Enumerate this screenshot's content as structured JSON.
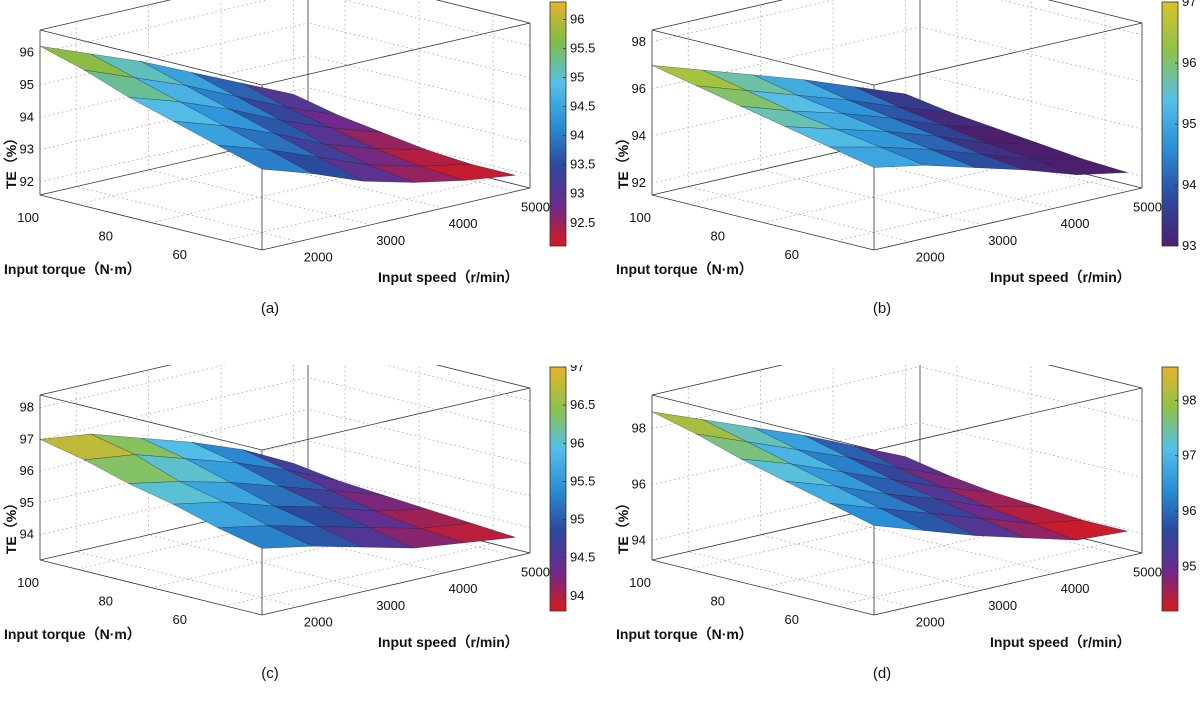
{
  "chart_data": [
    {
      "id": "a",
      "type": "surface",
      "caption": "(a)",
      "title": "",
      "xlabel": "Input speed（r/min）",
      "ylabel": "Input torque（N·m）",
      "zlabel": "TE（%）",
      "x_ticks": [
        "2000",
        "3000",
        "4000",
        "5000"
      ],
      "y_ticks": [
        "100",
        "80",
        "60"
      ],
      "z_ticks": [
        "96",
        "95",
        "94",
        "93",
        "92"
      ],
      "colorbar_ticks": [
        "96",
        "95.5",
        "95",
        "94.5",
        "94",
        "93.5",
        "93",
        "92.5"
      ],
      "xlim": [
        1500,
        5200
      ],
      "ylim": [
        50,
        110
      ],
      "zlim": [
        91.6,
        96.7
      ],
      "clim": [
        92.1,
        96.3
      ],
      "grid": true,
      "colormap": [
        "#d7191c",
        "#6b2a8c",
        "#2b4a9e",
        "#2a8fd6",
        "#55c0e8",
        "#7dbd4a",
        "#e8b32a"
      ],
      "surface": {
        "speed": [
          1500,
          2200,
          2900,
          3600,
          4300,
          5000
        ],
        "torque": [
          110,
          98,
          86,
          74,
          62,
          50
        ],
        "te": [
          [
            96.2,
            95.6,
            95.0,
            94.3,
            93.6,
            92.9
          ],
          [
            95.8,
            95.2,
            94.6,
            93.9,
            93.2,
            92.6
          ],
          [
            95.3,
            94.8,
            94.2,
            93.5,
            92.9,
            92.4
          ],
          [
            94.9,
            94.4,
            93.8,
            93.1,
            92.6,
            92.2
          ],
          [
            94.5,
            94.0,
            93.4,
            92.8,
            92.4,
            92.1
          ],
          [
            94.1,
            93.6,
            93.0,
            92.6,
            92.3,
            92.1
          ]
        ]
      }
    },
    {
      "id": "b",
      "type": "surface",
      "caption": "(b)",
      "title": "",
      "xlabel": "Input speed（r/min）",
      "ylabel": "Input torque（N·m）",
      "zlabel": "TE（%）",
      "x_ticks": [
        "2000",
        "3000",
        "4000",
        "5000"
      ],
      "y_ticks": [
        "100",
        "80",
        "60"
      ],
      "z_ticks": [
        "98",
        "96",
        "94",
        "92"
      ],
      "colorbar_ticks": [
        "97",
        "96",
        "95",
        "94",
        "93"
      ],
      "xlim": [
        1500,
        5200
      ],
      "ylim": [
        50,
        110
      ],
      "zlim": [
        91.5,
        98.5
      ],
      "clim": [
        93.0,
        97.0
      ],
      "grid": true,
      "colormap": [
        "#4b1f6e",
        "#2b4a9e",
        "#2a8fd6",
        "#55c0e8",
        "#8ec24a",
        "#d9c22a"
      ],
      "surface": {
        "speed": [
          1500,
          2200,
          2900,
          3600,
          4300,
          5000
        ],
        "torque": [
          110,
          98,
          86,
          74,
          62,
          50
        ],
        "te": [
          [
            97.0,
            96.3,
            95.6,
            94.9,
            94.1,
            93.3
          ],
          [
            96.6,
            95.9,
            95.2,
            94.5,
            93.7,
            93.0
          ],
          [
            96.2,
            95.5,
            94.9,
            94.2,
            93.4,
            92.8
          ],
          [
            95.8,
            95.2,
            94.6,
            93.9,
            93.1,
            92.6
          ],
          [
            95.4,
            94.9,
            94.3,
            93.6,
            92.9,
            92.4
          ],
          [
            95.0,
            94.6,
            94.0,
            93.4,
            92.7,
            92.3
          ]
        ]
      }
    },
    {
      "id": "c",
      "type": "surface",
      "caption": "(c)",
      "title": "",
      "xlabel": "Input speed（r/min）",
      "ylabel": "Input torque（N·m）",
      "zlabel": "TE（%）",
      "x_ticks": [
        "2000",
        "3000",
        "4000",
        "5000"
      ],
      "y_ticks": [
        "100",
        "80",
        "60"
      ],
      "z_ticks": [
        "98",
        "97",
        "96",
        "95",
        "94"
      ],
      "colorbar_ticks": [
        "97",
        "96.5",
        "96",
        "95.5",
        "95",
        "94.5",
        "94"
      ],
      "xlim": [
        1500,
        5200
      ],
      "ylim": [
        50,
        110
      ],
      "zlim": [
        93.2,
        98.4
      ],
      "clim": [
        93.8,
        97.0
      ],
      "grid": true,
      "colormap": [
        "#d7191c",
        "#6b2a8c",
        "#2b4a9e",
        "#2a8fd6",
        "#55c0e8",
        "#8ec24a",
        "#e8b32a"
      ],
      "surface": {
        "speed": [
          1500,
          2200,
          2900,
          3600,
          4300,
          5000
        ],
        "torque": [
          110,
          98,
          86,
          74,
          62,
          50
        ],
        "te": [
          [
            97.0,
            96.8,
            96.3,
            95.8,
            95.2,
            94.4
          ],
          [
            96.7,
            96.5,
            96.0,
            95.5,
            94.9,
            94.2
          ],
          [
            96.3,
            96.0,
            95.6,
            95.1,
            94.6,
            94.1
          ],
          [
            96.0,
            95.7,
            95.2,
            94.8,
            94.3,
            94.0
          ],
          [
            95.6,
            95.3,
            94.9,
            94.5,
            94.1,
            93.9
          ],
          [
            95.3,
            95.0,
            94.6,
            94.2,
            94.0,
            93.8
          ]
        ]
      }
    },
    {
      "id": "d",
      "type": "surface",
      "caption": "(d)",
      "title": "",
      "xlabel": "Input speed（r/min）",
      "ylabel": "Input torque（N·m）",
      "zlabel": "TE（%）",
      "x_ticks": [
        "2000",
        "3000",
        "4000",
        "5000"
      ],
      "y_ticks": [
        "100",
        "80",
        "60"
      ],
      "z_ticks": [
        "98",
        "96",
        "94"
      ],
      "colorbar_ticks": [
        "98",
        "97",
        "96",
        "95"
      ],
      "xlim": [
        1500,
        5200
      ],
      "ylim": [
        50,
        110
      ],
      "zlim": [
        93.3,
        99.2
      ],
      "clim": [
        94.2,
        98.6
      ],
      "grid": true,
      "colormap": [
        "#d7191c",
        "#6b2a8c",
        "#2b4a9e",
        "#2a8fd6",
        "#55c0e8",
        "#8ec24a",
        "#e8b32a"
      ],
      "surface": {
        "speed": [
          1500,
          2200,
          2900,
          3600,
          4300,
          5000
        ],
        "torque": [
          110,
          98,
          86,
          74,
          62,
          50
        ],
        "te": [
          [
            98.6,
            97.9,
            97.2,
            96.5,
            95.7,
            94.9
          ],
          [
            98.2,
            97.5,
            96.8,
            96.1,
            95.3,
            94.6
          ],
          [
            97.7,
            97.1,
            96.4,
            95.7,
            95.0,
            94.4
          ],
          [
            97.3,
            96.7,
            96.0,
            95.4,
            94.7,
            94.3
          ],
          [
            96.9,
            96.3,
            95.7,
            95.1,
            94.5,
            94.2
          ],
          [
            96.5,
            95.9,
            95.3,
            94.8,
            94.3,
            94.2
          ]
        ]
      }
    }
  ]
}
